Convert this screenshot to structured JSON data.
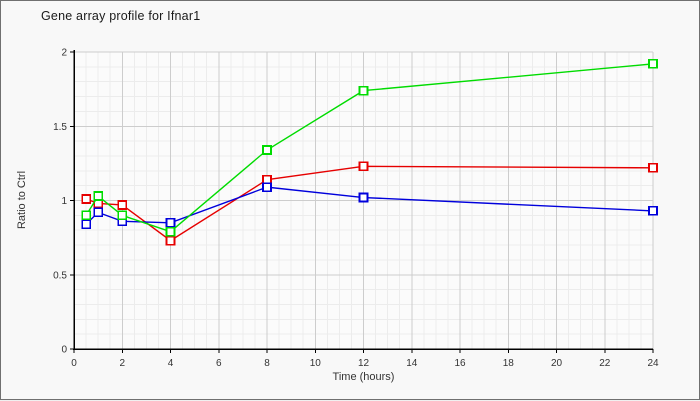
{
  "chart_data": {
    "type": "line",
    "title": "Gene array profile for Ifnar1",
    "xlabel": "Time (hours)",
    "ylabel": "Ratio to Ctrl",
    "xlim": [
      0,
      24
    ],
    "ylim": [
      0,
      2
    ],
    "x_major_ticks": [
      0,
      2,
      4,
      6,
      8,
      10,
      12,
      14,
      16,
      18,
      20,
      22,
      24
    ],
    "y_major_ticks": [
      0,
      0.5,
      1,
      1.5,
      2
    ],
    "x_minor_step": 0.5,
    "y_minor_step": 0.1,
    "grid": true,
    "legend": "none",
    "marker": "open-square",
    "x": [
      0.5,
      1,
      2,
      4,
      8,
      12,
      24
    ],
    "series": [
      {
        "name": "red",
        "color": "#e60000",
        "values": [
          1.01,
          0.98,
          0.97,
          0.73,
          1.14,
          1.23,
          1.22
        ]
      },
      {
        "name": "blue",
        "color": "#0000dc",
        "values": [
          0.84,
          0.92,
          0.86,
          0.85,
          1.09,
          1.02,
          0.93
        ]
      },
      {
        "name": "green",
        "color": "#00dc00",
        "values": [
          0.9,
          1.03,
          0.9,
          0.79,
          1.34,
          1.74,
          1.92
        ]
      }
    ],
    "colors": {
      "axis": "#000000",
      "grid_major": "#cdcdcd",
      "grid_minor": "#ececec",
      "background": "#f8f8f8",
      "plot_background": "#fbfbfb",
      "border": "#707070",
      "tick_text": "#333333",
      "marker_fill": "#ffffff"
    }
  }
}
